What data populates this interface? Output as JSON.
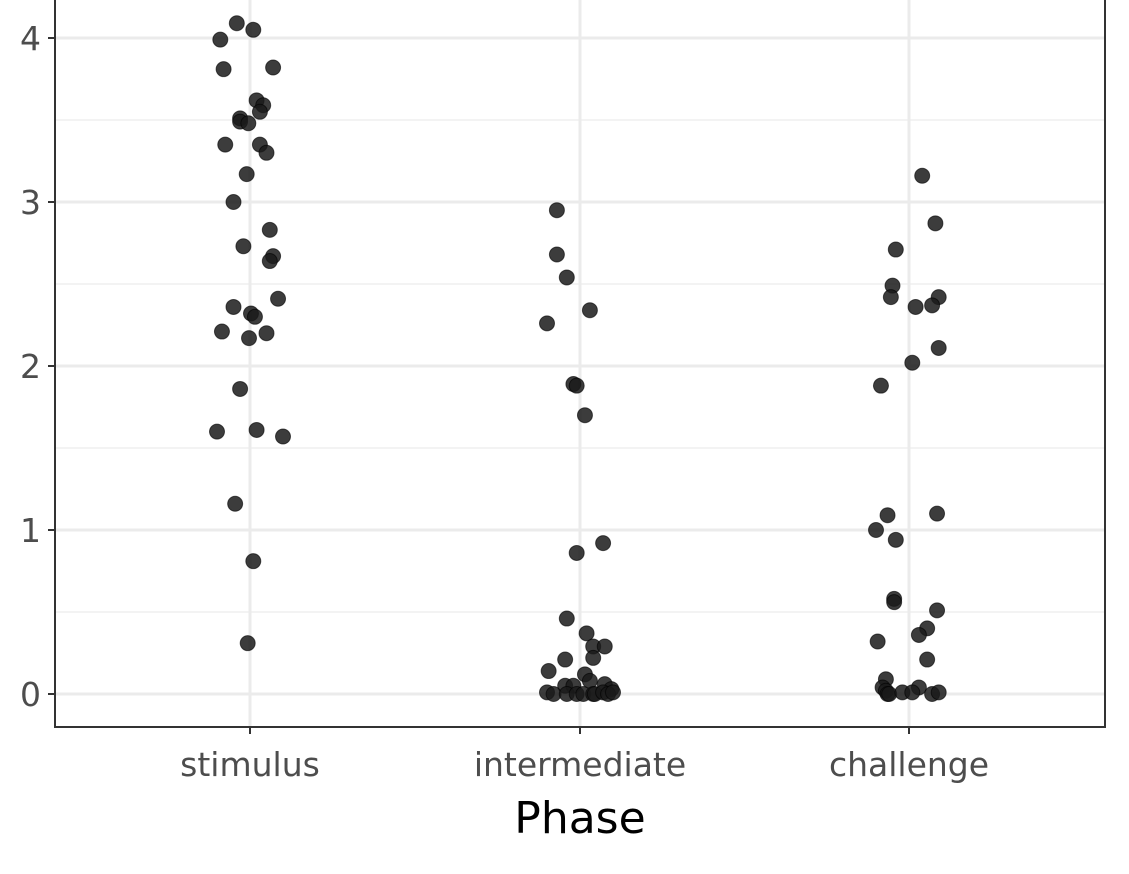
{
  "chart_data": {
    "type": "scatter",
    "title": "",
    "xlabel": "Phase",
    "ylabel": "",
    "categories": [
      "stimulus",
      "intermediate",
      "challenge"
    ],
    "y_ticks": [
      "0",
      "1",
      "2",
      "3",
      "4"
    ],
    "ylim": [
      -0.2,
      4.4
    ],
    "grid": true,
    "legend": "none",
    "point_color": "#1a1a1a",
    "point_opacity": 0.85,
    "series": [
      {
        "category": "stimulus",
        "points": [
          {
            "x": -0.04,
            "y": 4.09
          },
          {
            "x": 0.01,
            "y": 4.05
          },
          {
            "x": -0.09,
            "y": 3.99
          },
          {
            "x": -0.08,
            "y": 3.81
          },
          {
            "x": 0.07,
            "y": 3.82
          },
          {
            "x": 0.02,
            "y": 3.62
          },
          {
            "x": 0.04,
            "y": 3.59
          },
          {
            "x": 0.03,
            "y": 3.55
          },
          {
            "x": -0.03,
            "y": 3.51
          },
          {
            "x": -0.03,
            "y": 3.49
          },
          {
            "x": -0.005,
            "y": 3.48
          },
          {
            "x": -0.075,
            "y": 3.35
          },
          {
            "x": 0.03,
            "y": 3.35
          },
          {
            "x": 0.05,
            "y": 3.3
          },
          {
            "x": -0.01,
            "y": 3.17
          },
          {
            "x": -0.05,
            "y": 3.0
          },
          {
            "x": 0.06,
            "y": 2.83
          },
          {
            "x": -0.02,
            "y": 2.73
          },
          {
            "x": 0.07,
            "y": 2.67
          },
          {
            "x": 0.06,
            "y": 2.64
          },
          {
            "x": 0.085,
            "y": 2.41
          },
          {
            "x": -0.05,
            "y": 2.36
          },
          {
            "x": 0.003,
            "y": 2.32
          },
          {
            "x": 0.015,
            "y": 2.3
          },
          {
            "x": -0.085,
            "y": 2.21
          },
          {
            "x": 0.05,
            "y": 2.2
          },
          {
            "x": -0.003,
            "y": 2.17
          },
          {
            "x": -0.03,
            "y": 1.86
          },
          {
            "x": -0.1,
            "y": 1.6
          },
          {
            "x": 0.02,
            "y": 1.61
          },
          {
            "x": 0.1,
            "y": 1.57
          },
          {
            "x": -0.045,
            "y": 1.16
          },
          {
            "x": 0.01,
            "y": 0.81
          },
          {
            "x": -0.007,
            "y": 0.31
          }
        ]
      },
      {
        "category": "intermediate",
        "points": [
          {
            "x": -0.07,
            "y": 2.95
          },
          {
            "x": -0.07,
            "y": 2.68
          },
          {
            "x": -0.04,
            "y": 2.54
          },
          {
            "x": 0.03,
            "y": 2.34
          },
          {
            "x": -0.1,
            "y": 2.26
          },
          {
            "x": -0.02,
            "y": 1.89
          },
          {
            "x": -0.01,
            "y": 1.88
          },
          {
            "x": 0.015,
            "y": 1.7
          },
          {
            "x": 0.07,
            "y": 0.92
          },
          {
            "x": -0.01,
            "y": 0.86
          },
          {
            "x": -0.04,
            "y": 0.46
          },
          {
            "x": 0.02,
            "y": 0.37
          },
          {
            "x": 0.04,
            "y": 0.29
          },
          {
            "x": 0.075,
            "y": 0.29
          },
          {
            "x": 0.04,
            "y": 0.22
          },
          {
            "x": -0.045,
            "y": 0.21
          },
          {
            "x": -0.095,
            "y": 0.14
          },
          {
            "x": 0.015,
            "y": 0.12
          },
          {
            "x": 0.03,
            "y": 0.08
          },
          {
            "x": 0.075,
            "y": 0.06
          },
          {
            "x": -0.045,
            "y": 0.05
          },
          {
            "x": -0.02,
            "y": 0.05
          },
          {
            "x": 0.095,
            "y": 0.03
          },
          {
            "x": -0.1,
            "y": 0.01
          },
          {
            "x": -0.08,
            "y": 0.0
          },
          {
            "x": -0.04,
            "y": 0.0
          },
          {
            "x": -0.01,
            "y": 0.0
          },
          {
            "x": 0.01,
            "y": 0.0
          },
          {
            "x": 0.04,
            "y": 0.0
          },
          {
            "x": 0.045,
            "y": 0.0
          },
          {
            "x": 0.07,
            "y": 0.01
          },
          {
            "x": 0.085,
            "y": 0.0
          },
          {
            "x": 0.1,
            "y": 0.01
          }
        ]
      },
      {
        "category": "challenge",
        "points": [
          {
            "x": 0.04,
            "y": 3.16
          },
          {
            "x": 0.08,
            "y": 2.87
          },
          {
            "x": -0.04,
            "y": 2.71
          },
          {
            "x": -0.05,
            "y": 2.49
          },
          {
            "x": -0.055,
            "y": 2.42
          },
          {
            "x": 0.09,
            "y": 2.42
          },
          {
            "x": 0.07,
            "y": 2.37
          },
          {
            "x": 0.02,
            "y": 2.36
          },
          {
            "x": 0.09,
            "y": 2.11
          },
          {
            "x": 0.01,
            "y": 2.02
          },
          {
            "x": -0.085,
            "y": 1.88
          },
          {
            "x": 0.085,
            "y": 1.1
          },
          {
            "x": -0.065,
            "y": 1.09
          },
          {
            "x": -0.1,
            "y": 1.0
          },
          {
            "x": -0.04,
            "y": 0.94
          },
          {
            "x": -0.045,
            "y": 0.58
          },
          {
            "x": -0.045,
            "y": 0.56
          },
          {
            "x": 0.085,
            "y": 0.51
          },
          {
            "x": 0.055,
            "y": 0.4
          },
          {
            "x": 0.03,
            "y": 0.36
          },
          {
            "x": -0.095,
            "y": 0.32
          },
          {
            "x": 0.055,
            "y": 0.21
          },
          {
            "x": -0.07,
            "y": 0.09
          },
          {
            "x": -0.08,
            "y": 0.04
          },
          {
            "x": 0.03,
            "y": 0.04
          },
          {
            "x": -0.07,
            "y": 0.02
          },
          {
            "x": -0.065,
            "y": 0.0
          },
          {
            "x": -0.06,
            "y": 0.0
          },
          {
            "x": -0.02,
            "y": 0.01
          },
          {
            "x": 0.01,
            "y": 0.01
          },
          {
            "x": 0.07,
            "y": 0.0
          },
          {
            "x": 0.09,
            "y": 0.01
          }
        ]
      }
    ]
  }
}
